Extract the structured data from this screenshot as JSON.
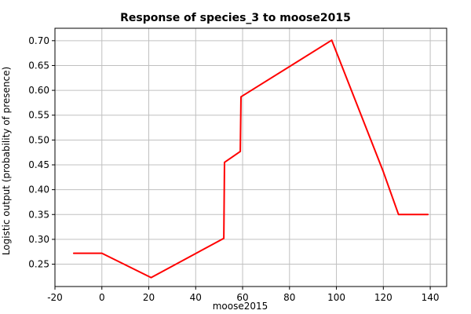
{
  "chart_data": {
    "type": "line",
    "title": "Response of species_3 to moose2015",
    "xlabel": "moose2015",
    "ylabel": "Logistic output (probability of presence)",
    "xlim": [
      -20,
      147
    ],
    "ylim": [
      0.205,
      0.725
    ],
    "xticks": [
      -20,
      0,
      20,
      40,
      60,
      80,
      100,
      120,
      140
    ],
    "yticks": [
      0.25,
      0.3,
      0.35,
      0.4,
      0.45,
      0.5,
      0.55,
      0.6,
      0.65,
      0.7
    ],
    "ytick_labels": [
      "0.25",
      "0.30",
      "0.35",
      "0.40",
      "0.45",
      "0.50",
      "0.55",
      "0.60",
      "0.65",
      "0.70"
    ],
    "grid": true,
    "series": [
      {
        "color": "#ff0000",
        "x": [
          -12,
          0,
          21,
          52,
          52.3,
          59,
          59.3,
          98,
          120,
          126.5,
          139
        ],
        "y": [
          0.272,
          0.272,
          0.223,
          0.302,
          0.455,
          0.477,
          0.587,
          0.701,
          0.436,
          0.35,
          0.35
        ]
      }
    ]
  }
}
